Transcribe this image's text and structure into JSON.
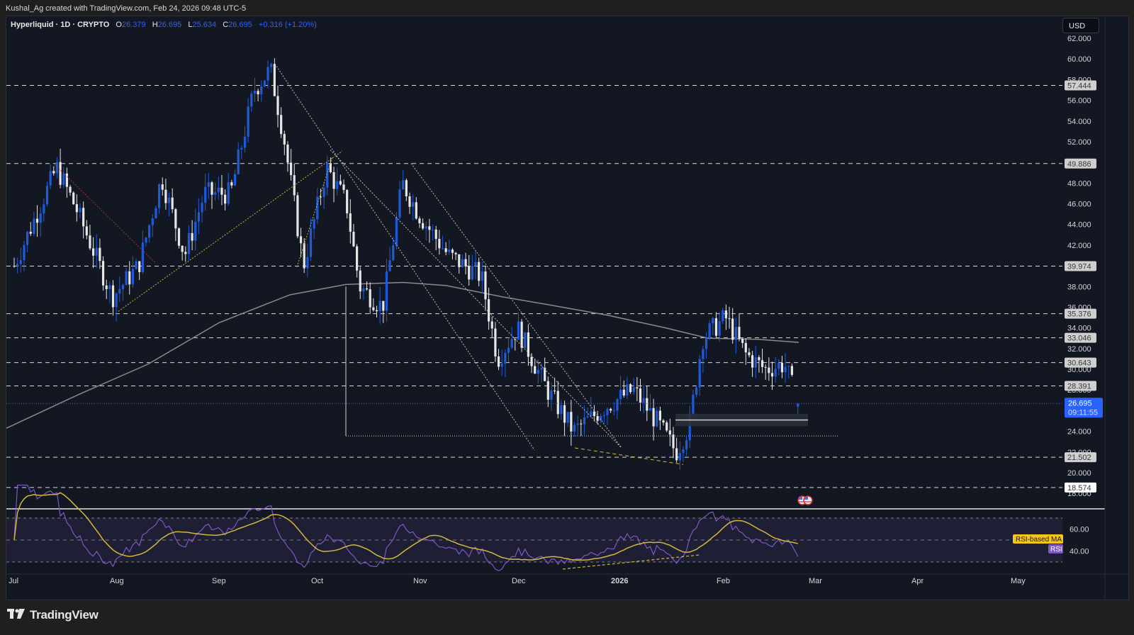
{
  "header": {
    "attribution": "Kushal_Ag created with TradingView.com, Feb 24, 2026 09:48 UTC-5"
  },
  "legend": {
    "symbol": "Hyperliquid · 1D · CRYPTO",
    "open_label": "O",
    "open": "26.379",
    "high_label": "H",
    "high": "26.695",
    "low_label": "L",
    "low": "25.634",
    "close_label": "C",
    "close": "26.695",
    "change": "+0.316 (+1.20%)"
  },
  "currency_button": "USD",
  "price_scale": {
    "ticks": [
      "62.000",
      "60.000",
      "58.000",
      "56.000",
      "54.000",
      "52.000",
      "50.000",
      "48.000",
      "46.000",
      "44.000",
      "42.000",
      "40.000",
      "38.000",
      "36.000",
      "34.000",
      "32.000",
      "30.000",
      "28.000",
      "26.000",
      "24.000",
      "22.000",
      "20.000",
      "18.000"
    ],
    "level_labels": [
      "57.444",
      "49.886",
      "39.974",
      "35.376",
      "33.046",
      "30.643",
      "28.391",
      "21.502",
      "18.574"
    ],
    "current_price": "26.695",
    "countdown": "09:11:55"
  },
  "rsi_pane": {
    "ma_label": "RSI-based MA",
    "rsi_label": "RSI",
    "ticks": [
      "60.00",
      "40.00"
    ]
  },
  "time_axis": {
    "labels": [
      "Jul",
      "Aug",
      "Sep",
      "Oct",
      "Nov",
      "Dec",
      "2026",
      "Feb",
      "Mar",
      "Apr",
      "May"
    ]
  },
  "brand": {
    "logo": "TV",
    "name": "TradingView"
  },
  "colors": {
    "up": "#1e5bd8",
    "down": "#e6e6e6",
    "background": "#131722",
    "rsi": "#7e57c2",
    "rsi_ma": "#d4b73a",
    "current_price_bg": "#2962ff"
  },
  "chart_data": {
    "type": "candlestick",
    "title": "Hyperliquid · 1D · CRYPTO",
    "xlabel": "",
    "ylabel": "USD",
    "ylim": [
      17.5,
      63
    ],
    "x_ticks": [
      "Jul",
      "Aug",
      "Sep",
      "Oct",
      "Nov",
      "Dec",
      "2026",
      "Feb",
      "Mar",
      "Apr",
      "May"
    ],
    "horizontal_levels": [
      57.444,
      49.886,
      39.974,
      35.376,
      33.046,
      30.643,
      28.391,
      21.502,
      18.574
    ],
    "last": {
      "open": 26.379,
      "high": 26.695,
      "low": 25.634,
      "close": 26.695,
      "change": 0.316,
      "change_pct": 1.2
    },
    "approx_path": [
      [
        "Jul 1",
        40.0
      ],
      [
        "Jul 14",
        49.5
      ],
      [
        "Jul 20",
        45.5
      ],
      [
        "Jul 31",
        37.0
      ],
      [
        "Aug 8",
        40.0
      ],
      [
        "Aug 15",
        48.5
      ],
      [
        "Aug 22",
        41.0
      ],
      [
        "Aug 28",
        47.0
      ],
      [
        "Sep 5",
        47.0
      ],
      [
        "Sep 12",
        57.0
      ],
      [
        "Sep 17",
        59.0
      ],
      [
        "Sep 21",
        52.5
      ],
      [
        "Sep 27",
        40.0
      ],
      [
        "Oct 4",
        49.5
      ],
      [
        "Oct 10",
        46.0
      ],
      [
        "Oct 14",
        38.0
      ],
      [
        "Oct 21",
        36.0
      ],
      [
        "Oct 27",
        48.0
      ],
      [
        "Nov 1",
        45.0
      ],
      [
        "Nov 10",
        41.0
      ],
      [
        "Nov 20",
        39.0
      ],
      [
        "Nov 25",
        31.0
      ],
      [
        "Dec 1",
        34.0
      ],
      [
        "Dec 10",
        28.0
      ],
      [
        "Dec 18",
        24.0
      ],
      [
        "Dec 28",
        26.5
      ],
      [
        "Jan 5",
        28.0
      ],
      [
        "Jan 12",
        25.0
      ],
      [
        "Jan 18",
        22.0
      ],
      [
        "Jan 22",
        24.5
      ],
      [
        "Jan 26",
        33.0
      ],
      [
        "Feb 2",
        35.0
      ],
      [
        "Feb 8",
        31.5
      ],
      [
        "Feb 14",
        30.0
      ],
      [
        "Feb 20",
        30.5
      ],
      [
        "Feb 24",
        26.695
      ]
    ],
    "moving_average_200": {
      "start": 24.3,
      "peak_oct": 38.4,
      "end_feb": 32.8
    },
    "rsi": {
      "levels": [
        70,
        30
      ],
      "ticks": [
        60,
        40
      ],
      "last_rsi": 41,
      "last_ma": 50
    }
  }
}
